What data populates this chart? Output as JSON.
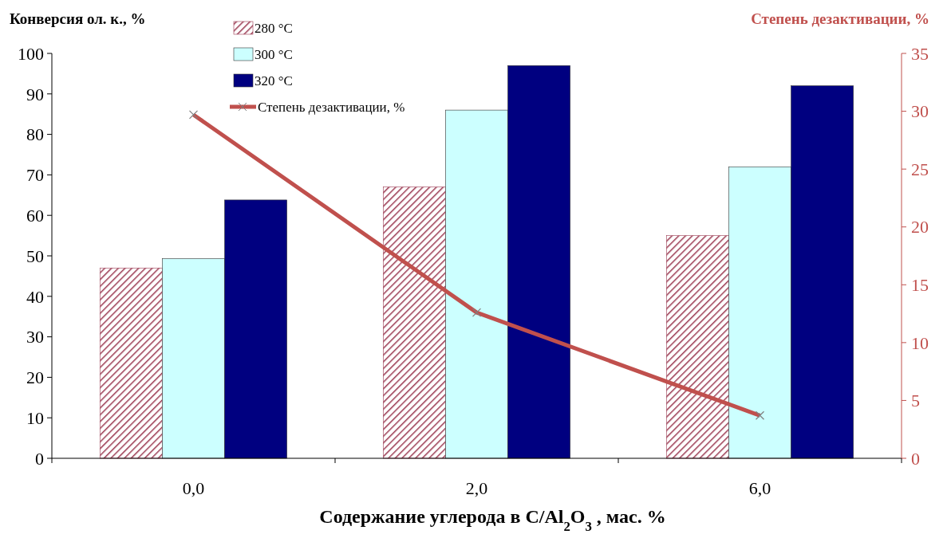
{
  "chart_data": {
    "type": "bar",
    "categories": [
      "0,0",
      "2,0",
      "6,0"
    ],
    "series": [
      {
        "name": "280 °C",
        "color": "#9b3a52",
        "values": [
          47,
          67,
          55
        ]
      },
      {
        "name": "300 °C",
        "color": "#ccffff",
        "values": [
          49.3,
          86,
          72
        ]
      },
      {
        "name": "320 °C",
        "color": "#000080",
        "values": [
          63.8,
          97,
          92
        ]
      },
      {
        "name": "Степень дезактивации, %",
        "type": "line",
        "axis": "y2",
        "color": "#c0504d",
        "values": [
          29.7,
          12.6,
          3.7
        ],
        "marker": "cross"
      }
    ],
    "xlabel": "Содержание углерода в C/Al$_{2}$O$_{3}$ , мас. %",
    "ylabel": "Конверсия ол. к., %",
    "y2label": "Степень дезактивации, %",
    "ylim": [
      0,
      100
    ],
    "yticks": [
      0,
      10,
      20,
      30,
      40,
      50,
      60,
      70,
      80,
      90,
      100
    ],
    "y2lim": [
      0,
      35
    ],
    "y2ticks": [
      0,
      5,
      10,
      15,
      20,
      25,
      30,
      35
    ],
    "legend": "top",
    "grid": false
  }
}
